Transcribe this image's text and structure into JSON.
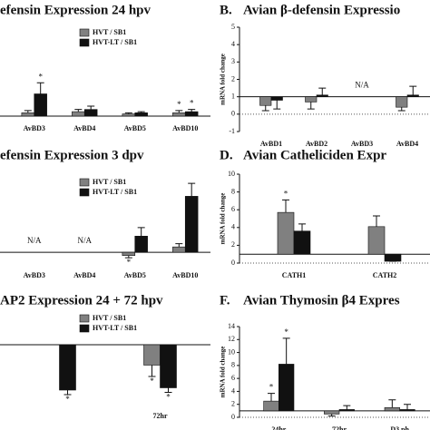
{
  "chart_data": [
    {
      "type": "bar",
      "title": "efensin Expression 24 hpv",
      "legend": true,
      "categories": [
        "AvBD3",
        "AvBD4",
        "AvBD5",
        "AvBD10"
      ],
      "series": [
        {
          "name": "HVT / SB1",
          "color": "#808080",
          "values": [
            0.3,
            0.4,
            0.2,
            0.3
          ],
          "errors": [
            0.2,
            0.2,
            0.1,
            0.2
          ]
        },
        {
          "name": "HVT-LT / SB1",
          "color": "#111111",
          "values": [
            2,
            0.6,
            0.3,
            0.4
          ],
          "errors": [
            1,
            0.3,
            0.1,
            0.2
          ]
        }
      ],
      "ylim": [
        0,
        8
      ],
      "annotations": [
        {
          "text": "*",
          "category": "AvBD3",
          "series": "HVT-LT / SB1"
        },
        {
          "text": "*",
          "category": "AvBD10",
          "series": "HVT / SB1"
        },
        {
          "text": "*",
          "category": "AvBD10",
          "series": "HVT-LT / SB1"
        }
      ]
    },
    {
      "type": "bar",
      "label": "B.",
      "title": "Avian β-defensin Expressio",
      "y_label": "mRNA fold change",
      "baseline": 1,
      "categories": [
        "AvBD1",
        "AvBD2",
        "AvBD3",
        "AvBD4"
      ],
      "series": [
        {
          "name": "HVT / SB1",
          "color": "#808080",
          "values": [
            0.5,
            0.7,
            null,
            0.4
          ],
          "errors": [
            0.3,
            0.4,
            null,
            0.2
          ]
        },
        {
          "name": "HVT-LT / SB1",
          "color": "#111111",
          "values": [
            0.8,
            1.1,
            null,
            1.1
          ],
          "errors": [
            0.5,
            0.4,
            null,
            0.5
          ]
        }
      ],
      "ylim": [
        -1,
        5
      ],
      "yticks": [
        -1,
        0,
        1,
        2,
        3,
        4,
        5
      ],
      "annotations": [
        {
          "text": "N/A",
          "category": "AvBD3"
        }
      ]
    },
    {
      "type": "bar",
      "title": "efensin Expression 3 dpv",
      "legend": true,
      "categories": [
        "AvBD3",
        "AvBD4",
        "AvBD5",
        "AvBD10"
      ],
      "series": [
        {
          "name": "HVT / SB1",
          "color": "#808080",
          "values": [
            null,
            null,
            -0.3,
            0.5
          ],
          "errors": [
            null,
            null,
            0.2,
            0.3
          ]
        },
        {
          "name": "HVT-LT / SB1",
          "color": "#111111",
          "values": [
            null,
            null,
            1.5,
            5.2
          ],
          "errors": [
            null,
            null,
            0.8,
            1.2
          ]
        }
      ],
      "ylim": [
        -1,
        7
      ],
      "annotations": [
        {
          "text": "N/A",
          "category": "AvBD3"
        },
        {
          "text": "N/A",
          "category": "AvBD4"
        },
        {
          "text": "*",
          "category": "AvBD5",
          "series": "HVT / SB1"
        }
      ]
    },
    {
      "type": "bar",
      "label": "D.",
      "title": "Avian Catheliciden Expr",
      "y_label": "mRNA fold change",
      "baseline": 1,
      "categories": [
        "CATH1",
        "CATH2"
      ],
      "series": [
        {
          "name": "HVT / SB1",
          "color": "#808080",
          "values": [
            5.7,
            4.1
          ],
          "errors": [
            1.4,
            1.2
          ]
        },
        {
          "name": "HVT-LT / SB1",
          "color": "#111111",
          "values": [
            3.6,
            0.2
          ],
          "errors": [
            0.8,
            0
          ]
        }
      ],
      "ylim": [
        0,
        10
      ],
      "yticks": [
        0,
        2,
        4,
        6,
        8,
        10
      ],
      "annotations": [
        {
          "text": "*",
          "category": "CATH1",
          "series": "HVT / SB1"
        }
      ]
    },
    {
      "type": "bar",
      "title": "AP2 Expression 24 + 72 hpv",
      "legend": true,
      "categories": [
        null,
        "72hr"
      ],
      "series": [
        {
          "name": "HVT / SB1",
          "color": "#808080",
          "values": [
            null,
            -0.9
          ],
          "errors": [
            null,
            0.5
          ]
        },
        {
          "name": "HVT-LT / SB1",
          "color": "#111111",
          "values": [
            -2,
            -1.9
          ],
          "errors": [
            0.2,
            0.2
          ]
        }
      ],
      "ylim": [
        -2.6,
        1.4
      ],
      "annotations": [
        {
          "text": "*",
          "category": null,
          "series": "HVT-LT / SB1"
        },
        {
          "text": "*",
          "category": "72hr",
          "series": "HVT / SB1"
        },
        {
          "text": "*",
          "category": "72hr",
          "series": "HVT-LT / SB1"
        }
      ]
    },
    {
      "type": "bar",
      "label": "F.",
      "title": "Avian Thymosin β4 Expres",
      "y_label": "mRNA fold change",
      "baseline": 1,
      "categories": [
        "24hr",
        "72hr",
        "D3 ph"
      ],
      "series": [
        {
          "name": "HVT / SB1",
          "color": "#808080",
          "values": [
            2.5,
            0.5,
            1.5
          ],
          "errors": [
            1.2,
            0.3,
            1.2
          ]
        },
        {
          "name": "HVT-LT / SB1",
          "color": "#111111",
          "values": [
            8.2,
            1.2,
            1.2
          ],
          "errors": [
            4,
            0.6,
            0.8
          ]
        }
      ],
      "ylim": [
        0,
        14
      ],
      "yticks": [
        0,
        2,
        4,
        6,
        8,
        10,
        12,
        14
      ],
      "annotations": [
        {
          "text": "*",
          "category": "24hr",
          "series": "HVT / SB1"
        },
        {
          "text": "*",
          "category": "24hr",
          "series": "HVT-LT / SB1"
        }
      ]
    }
  ]
}
